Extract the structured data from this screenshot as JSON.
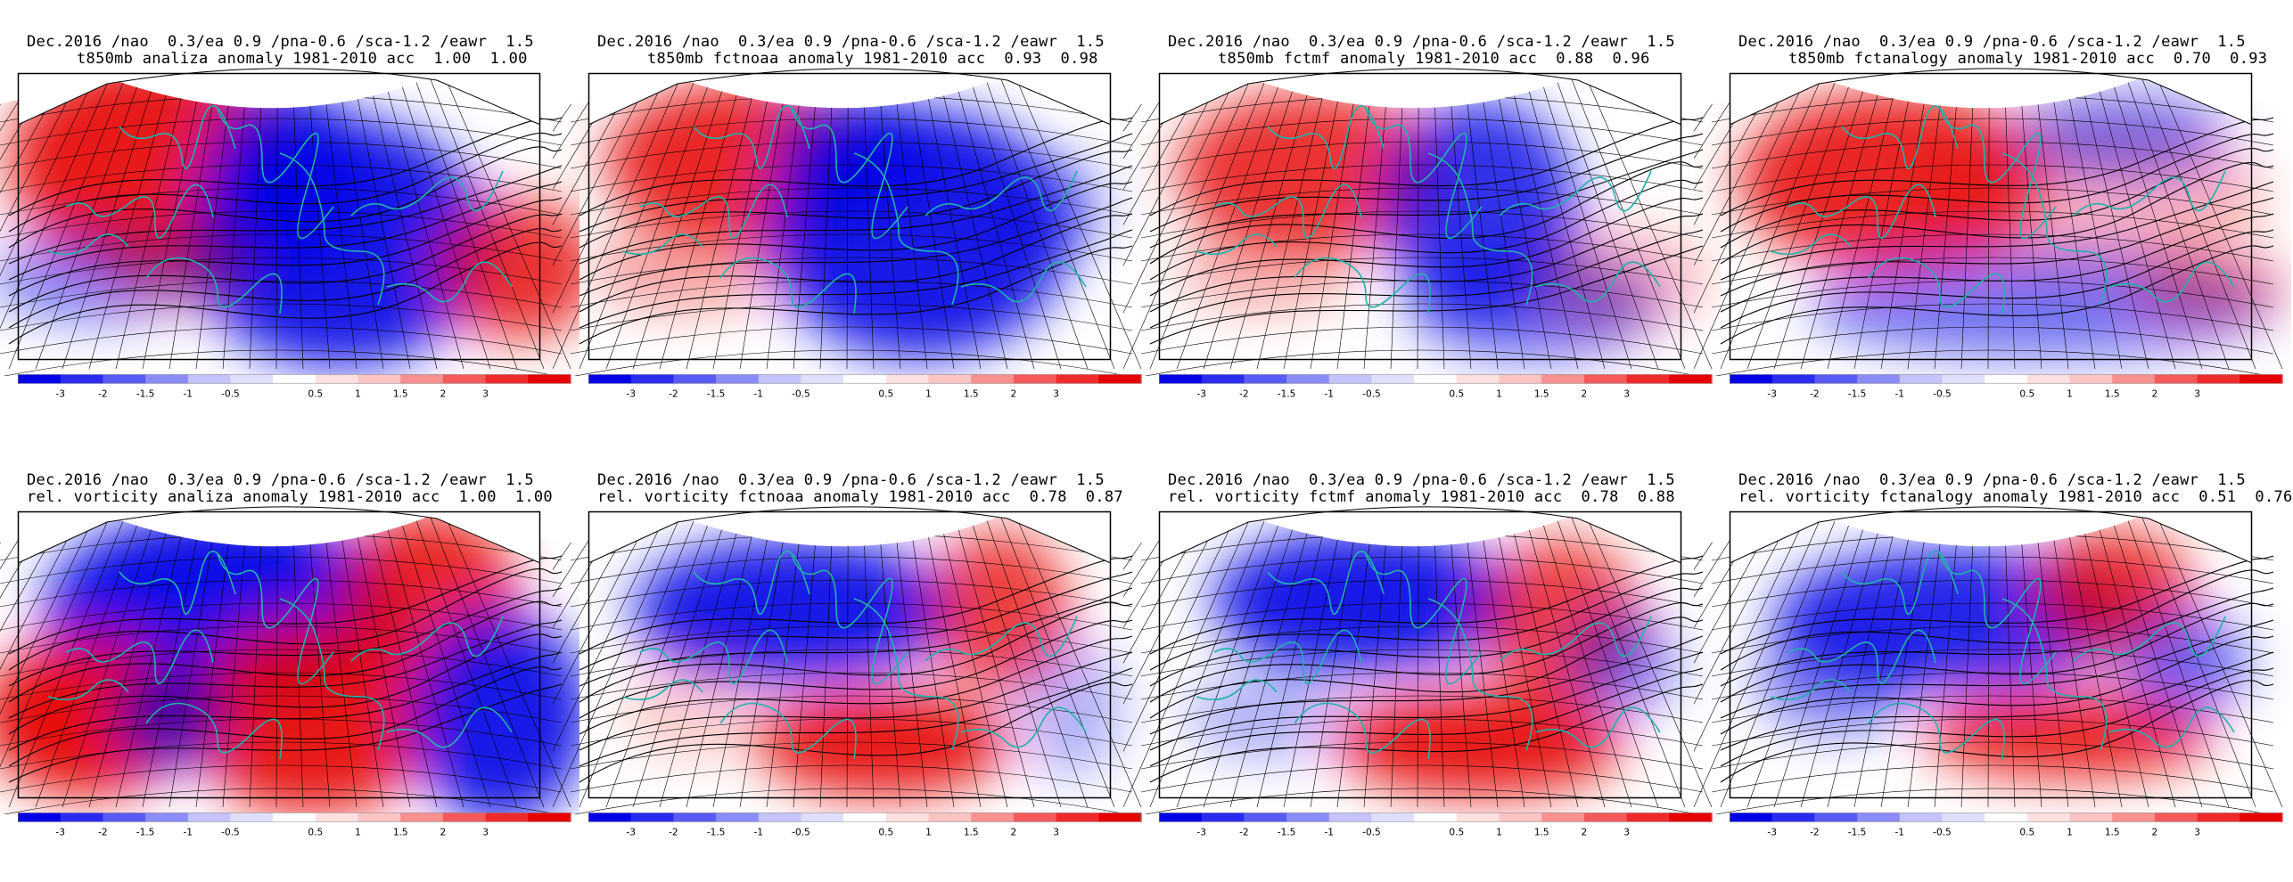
{
  "panels": [
    {
      "line1": "Dec.2016 /nao  0.3/ea 0.9 /pna-0.6 /sca-1.2 /eawr  1.5",
      "line2": "t850mb analiza anomaly 1981-2010 acc  1.00  1.00",
      "variable": "t850mb",
      "source": "analiza",
      "acc": [
        "1.00",
        "1.00"
      ],
      "pattern": "t-anal"
    },
    {
      "line1": "Dec.2016 /nao  0.3/ea 0.9 /pna-0.6 /sca-1.2 /eawr  1.5",
      "line2": "t850mb fctnoaa anomaly 1981-2010 acc  0.93  0.98",
      "variable": "t850mb",
      "source": "fctnoaa",
      "acc": [
        "0.93",
        "0.98"
      ],
      "pattern": "t-noaa"
    },
    {
      "line1": "Dec.2016 /nao  0.3/ea 0.9 /pna-0.6 /sca-1.2 /eawr  1.5",
      "line2": "t850mb fctmf anomaly 1981-2010 acc  0.88  0.96",
      "variable": "t850mb",
      "source": "fctmf",
      "acc": [
        "0.88",
        "0.96"
      ],
      "pattern": "t-mf"
    },
    {
      "line1": "Dec.2016 /nao  0.3/ea 0.9 /pna-0.6 /sca-1.2 /eawr  1.5",
      "line2": "t850mb fctanalogy anomaly 1981-2010 acc  0.70  0.93",
      "variable": "t850mb",
      "source": "fctanalogy",
      "acc": [
        "0.70",
        "0.93"
      ],
      "pattern": "t-analogy"
    },
    {
      "line1": "Dec.2016 /nao  0.3/ea 0.9 /pna-0.6 /sca-1.2 /eawr  1.5",
      "line2": "rel. vorticity analiza anomaly 1981-2010 acc  1.00  1.00",
      "variable": "rel. vorticity",
      "source": "analiza",
      "acc": [
        "1.00",
        "1.00"
      ],
      "pattern": "v-anal"
    },
    {
      "line1": "Dec.2016 /nao  0.3/ea 0.9 /pna-0.6 /sca-1.2 /eawr  1.5",
      "line2": "rel. vorticity fctnoaa anomaly 1981-2010 acc  0.78  0.87",
      "variable": "rel. vorticity",
      "source": "fctnoaa",
      "acc": [
        "0.78",
        "0.87"
      ],
      "pattern": "v-noaa"
    },
    {
      "line1": "Dec.2016 /nao  0.3/ea 0.9 /pna-0.6 /sca-1.2 /eawr  1.5",
      "line2": "rel. vorticity fctmf anomaly 1981-2010 acc  0.78  0.88",
      "variable": "rel. vorticity",
      "source": "fctmf",
      "acc": [
        "0.78",
        "0.88"
      ],
      "pattern": "v-mf"
    },
    {
      "line1": "Dec.2016 /nao  0.3/ea 0.9 /pna-0.6 /sca-1.2 /eawr  1.5",
      "line2": "rel. vorticity fctanalogy anomaly 1981-2010 acc  0.51  0.76",
      "variable": "rel. vorticity",
      "source": "fctanalogy",
      "acc": [
        "0.51",
        "0.76"
      ],
      "pattern": "v-analogy"
    }
  ],
  "colorbar": {
    "labels": [
      "-3",
      "-2",
      "-1.5",
      "-1",
      "-0.5",
      "0.5",
      "1",
      "1.5",
      "2",
      "3"
    ],
    "colors": [
      "#0000e6",
      "#2a2af0",
      "#5a5af5",
      "#8c8cf8",
      "#c4c4fb",
      "#e0e0fd",
      "#ffffff",
      "#fde0e0",
      "#fbc4c4",
      "#f89090",
      "#f55a5a",
      "#f02a2a",
      "#e60000"
    ]
  },
  "colors": {
    "coast": "#20b2aa",
    "warm": "#e60000",
    "cold": "#0000e6",
    "contour": "#000000"
  }
}
